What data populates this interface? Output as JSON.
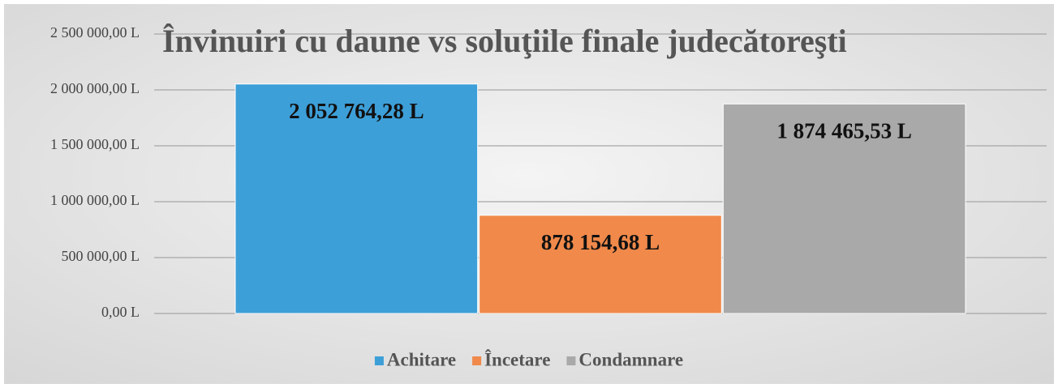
{
  "chart_data": {
    "type": "bar",
    "title": "Învinuiri cu daune  vs  soluţiile finale judecătoreşti",
    "categories": [
      null
    ],
    "series": [
      {
        "name": "Achitare",
        "color": "#3d9fd8",
        "values": [
          2052764.28
        ],
        "value_labels": [
          "2 052 764,28 L"
        ]
      },
      {
        "name": "Încetare",
        "color": "#f0894a",
        "values": [
          878154.68
        ],
        "value_labels": [
          "878 154,68 L"
        ]
      },
      {
        "name": "Condamnare",
        "color": "#a9a9a9",
        "values": [
          1874465.53
        ],
        "value_labels": [
          "1 874 465,53 L"
        ]
      }
    ],
    "ylim": [
      0,
      2500000
    ],
    "yticks": [
      {
        "value": 0,
        "label": "0,00 L"
      },
      {
        "value": 500000,
        "label": "500 000,00 L"
      },
      {
        "value": 1000000,
        "label": "1 000 000,00 L"
      },
      {
        "value": 1500000,
        "label": "1 500 000,00 L"
      },
      {
        "value": 2000000,
        "label": "2 000 000,00 L"
      },
      {
        "value": 2500000,
        "label": "2 500 000,00 L"
      }
    ],
    "grid": true,
    "legend": "bottom"
  }
}
